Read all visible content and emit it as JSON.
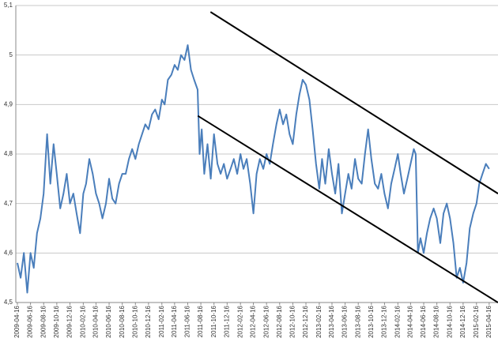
{
  "chart_data": {
    "type": "line",
    "x": [
      "2009-04-16",
      "2009-05-01",
      "2009-05-16",
      "2009-06-01",
      "2009-06-16",
      "2009-07-01",
      "2009-07-16",
      "2009-08-01",
      "2009-08-16",
      "2009-09-01",
      "2009-09-16",
      "2009-10-01",
      "2009-10-16",
      "2009-11-01",
      "2009-11-16",
      "2009-12-01",
      "2009-12-16",
      "2010-01-01",
      "2010-01-16",
      "2010-02-01",
      "2010-02-16",
      "2010-03-01",
      "2010-03-16",
      "2010-04-01",
      "2010-04-16",
      "2010-05-01",
      "2010-05-16",
      "2010-06-01",
      "2010-06-16",
      "2010-07-01",
      "2010-07-16",
      "2010-08-01",
      "2010-08-16",
      "2010-09-01",
      "2010-09-16",
      "2010-10-01",
      "2010-10-16",
      "2010-11-01",
      "2010-11-16",
      "2010-12-01",
      "2010-12-16",
      "2011-01-01",
      "2011-01-16",
      "2011-02-01",
      "2011-02-16",
      "2011-03-01",
      "2011-03-16",
      "2011-04-01",
      "2011-04-16",
      "2011-05-01",
      "2011-05-16",
      "2011-06-01",
      "2011-06-16",
      "2011-07-01",
      "2011-07-16",
      "2011-08-01",
      "2011-08-10",
      "2011-08-20",
      "2011-09-01",
      "2011-09-16",
      "2011-10-01",
      "2011-10-16",
      "2011-11-01",
      "2011-11-16",
      "2011-12-01",
      "2011-12-16",
      "2012-01-01",
      "2012-01-16",
      "2012-02-01",
      "2012-02-16",
      "2012-03-01",
      "2012-03-16",
      "2012-04-01",
      "2012-04-16",
      "2012-05-01",
      "2012-05-16",
      "2012-06-01",
      "2012-06-16",
      "2012-07-01",
      "2012-07-16",
      "2012-08-01",
      "2012-08-16",
      "2012-09-01",
      "2012-09-16",
      "2012-10-01",
      "2012-10-16",
      "2012-11-01",
      "2012-11-16",
      "2012-12-01",
      "2012-12-16",
      "2013-01-01",
      "2013-01-16",
      "2013-02-01",
      "2013-02-16",
      "2013-03-01",
      "2013-03-16",
      "2013-04-01",
      "2013-04-16",
      "2013-05-01",
      "2013-05-16",
      "2013-06-01",
      "2013-06-16",
      "2013-07-01",
      "2013-07-16",
      "2013-08-01",
      "2013-08-16",
      "2013-09-01",
      "2013-09-16",
      "2013-10-01",
      "2013-10-16",
      "2013-11-01",
      "2013-11-16",
      "2013-12-01",
      "2013-12-16",
      "2014-01-01",
      "2014-01-16",
      "2014-02-01",
      "2014-02-16",
      "2014-03-01",
      "2014-03-16",
      "2014-04-01",
      "2014-04-16",
      "2014-05-01",
      "2014-05-10",
      "2014-05-20",
      "2014-06-01",
      "2014-06-16",
      "2014-07-01",
      "2014-07-16",
      "2014-08-01",
      "2014-08-16",
      "2014-09-01",
      "2014-09-16",
      "2014-10-01",
      "2014-10-16",
      "2014-11-01",
      "2014-11-16",
      "2014-12-01",
      "2014-12-16",
      "2015-01-01",
      "2015-01-16",
      "2015-02-01",
      "2015-02-16",
      "2015-03-01",
      "2015-03-16",
      "2015-04-01",
      "2015-04-16"
    ],
    "series": [
      {
        "color": "#4a7ebb",
        "values": [
          4.58,
          4.55,
          4.6,
          4.52,
          4.6,
          4.57,
          4.64,
          4.67,
          4.72,
          4.84,
          4.74,
          4.82,
          4.76,
          4.69,
          4.72,
          4.76,
          4.7,
          4.72,
          4.68,
          4.64,
          4.72,
          4.74,
          4.79,
          4.76,
          4.72,
          4.7,
          4.67,
          4.7,
          4.75,
          4.71,
          4.7,
          4.74,
          4.76,
          4.76,
          4.79,
          4.81,
          4.79,
          4.82,
          4.84,
          4.86,
          4.85,
          4.88,
          4.89,
          4.87,
          4.91,
          4.9,
          4.95,
          4.96,
          4.98,
          4.97,
          5.0,
          4.99,
          5.02,
          4.97,
          4.95,
          4.93,
          4.8,
          4.85,
          4.76,
          4.82,
          4.75,
          4.84,
          4.78,
          4.76,
          4.78,
          4.75,
          4.77,
          4.79,
          4.76,
          4.8,
          4.77,
          4.79,
          4.74,
          4.68,
          4.76,
          4.79,
          4.77,
          4.8,
          4.78,
          4.82,
          4.86,
          4.89,
          4.86,
          4.88,
          4.84,
          4.82,
          4.88,
          4.92,
          4.95,
          4.94,
          4.91,
          4.85,
          4.78,
          4.73,
          4.79,
          4.74,
          4.81,
          4.76,
          4.72,
          4.78,
          4.68,
          4.72,
          4.76,
          4.73,
          4.79,
          4.75,
          4.74,
          4.8,
          4.85,
          4.79,
          4.74,
          4.73,
          4.76,
          4.72,
          4.69,
          4.74,
          4.77,
          4.8,
          4.76,
          4.72,
          4.75,
          4.78,
          4.81,
          4.8,
          4.6,
          4.63,
          4.6,
          4.64,
          4.67,
          4.69,
          4.67,
          4.62,
          4.68,
          4.7,
          4.67,
          4.62,
          4.55,
          4.57,
          4.54,
          4.58,
          4.65,
          4.68,
          4.7,
          4.74,
          4.76,
          4.78,
          4.77
        ]
      }
    ],
    "trendlines": [
      {
        "color": "#000000",
        "x": [
          "2011-09-30",
          "2015-05-27"
        ],
        "values": [
          5.087,
          4.72
        ]
      },
      {
        "color": "#000000",
        "x": [
          "2011-08-02",
          "2015-05-27"
        ],
        "values": [
          4.877,
          4.5
        ]
      }
    ],
    "xlim": [
      "2009-04-16",
      "2015-05-27"
    ],
    "xticks": [
      "2009-04-16",
      "2009-06-16",
      "2009-08-16",
      "2009-10-16",
      "2009-12-16",
      "2010-02-16",
      "2010-04-16",
      "2010-06-16",
      "2010-08-16",
      "2010-10-16",
      "2010-12-16",
      "2011-02-16",
      "2011-04-16",
      "2011-06-16",
      "2011-08-16",
      "2011-10-16",
      "2011-12-16",
      "2012-02-16",
      "2012-04-16",
      "2012-06-16",
      "2012-08-16",
      "2012-10-16",
      "2012-12-16",
      "2013-02-16",
      "2013-04-16",
      "2013-06-16",
      "2013-08-16",
      "2013-10-16",
      "2013-12-16",
      "2014-02-16",
      "2014-04-16",
      "2014-06-16",
      "2014-08-16",
      "2014-10-16",
      "2014-12-16",
      "2015-02-16",
      "2015-04-16"
    ],
    "ylim": [
      4.5,
      5.1
    ],
    "yticks": [
      {
        "value": 4.5,
        "label": "4,5"
      },
      {
        "value": 4.6,
        "label": "4,6"
      },
      {
        "value": 4.7,
        "label": "4,7"
      },
      {
        "value": 4.8,
        "label": "4,8"
      },
      {
        "value": 4.9,
        "label": "4,9"
      },
      {
        "value": 5,
        "label": "5"
      },
      {
        "value": 5.1,
        "label": "5,1"
      }
    ],
    "grid": true
  }
}
